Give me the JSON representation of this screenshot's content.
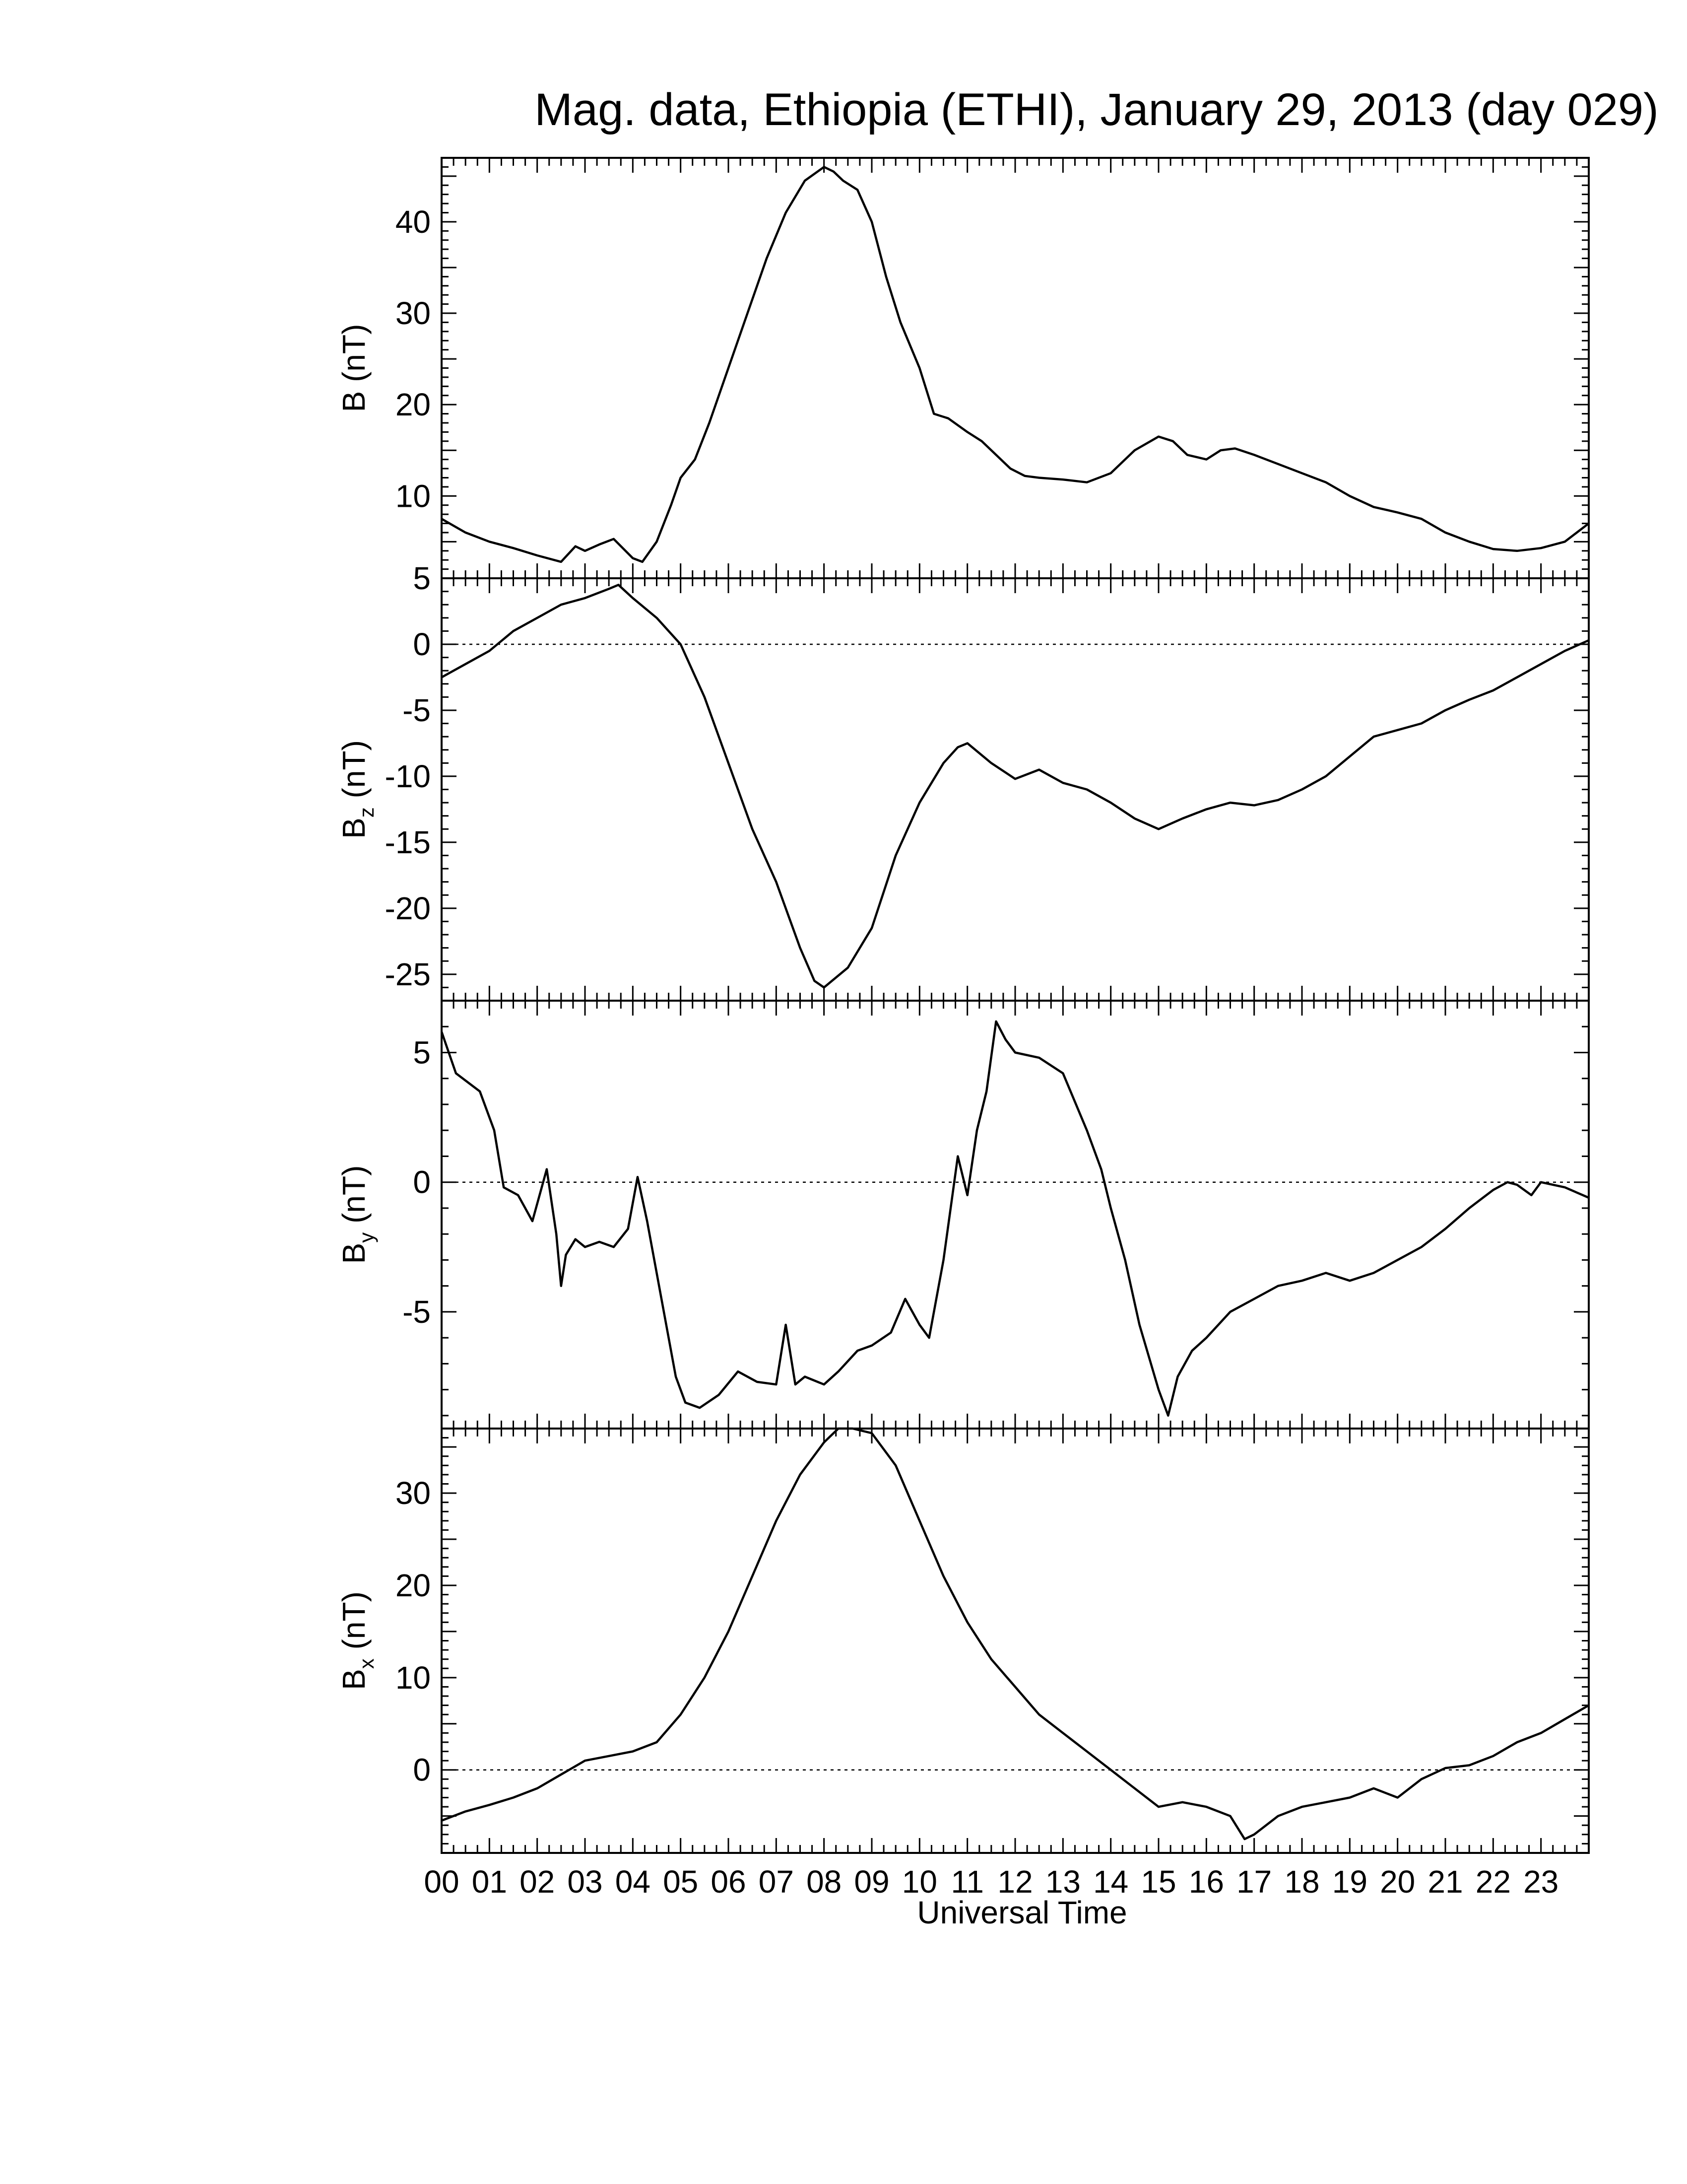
{
  "title": "Mag. data, Ethiopia (ETHI), January 29, 2013 (day 029)",
  "xlabel": "Universal Time",
  "x_tick_labels": [
    "00",
    "01",
    "02",
    "03",
    "04",
    "05",
    "06",
    "07",
    "08",
    "09",
    "10",
    "11",
    "12",
    "13",
    "14",
    "15",
    "16",
    "17",
    "18",
    "19",
    "20",
    "21",
    "22",
    "23"
  ],
  "chart_data": [
    {
      "type": "line",
      "panel": "B",
      "ylabel": "B (nT)",
      "ylabel_main": "B",
      "ylabel_sub": "",
      "ylabel_unit": " (nT)",
      "xlim": [
        0,
        24
      ],
      "ylim": [
        1,
        47
      ],
      "yticks": [
        10,
        20,
        30,
        40
      ],
      "zero_line": false,
      "x": [
        0,
        0.5,
        1,
        1.5,
        2,
        2.5,
        2.8,
        3,
        3.3,
        3.6,
        4,
        4.2,
        4.5,
        4.8,
        5,
        5.3,
        5.6,
        6,
        6.4,
        6.8,
        7.2,
        7.6,
        8,
        8.2,
        8.4,
        8.7,
        9,
        9.3,
        9.6,
        10,
        10.3,
        10.6,
        11,
        11.3,
        11.6,
        11.9,
        12.2,
        12.5,
        13,
        13.5,
        14,
        14.5,
        15,
        15.3,
        15.6,
        16,
        16.3,
        16.6,
        17,
        17.5,
        18,
        18.5,
        19,
        19.5,
        20,
        20.5,
        21,
        21.5,
        22,
        22.5,
        23,
        23.5,
        24
      ],
      "y": [
        7.5,
        6,
        5,
        4.3,
        3.5,
        2.8,
        4.5,
        4,
        4.7,
        5.3,
        3.2,
        2.8,
        5,
        9,
        12,
        14,
        18,
        24,
        30,
        36,
        41,
        44.5,
        46,
        45.5,
        44.5,
        43.5,
        40,
        34,
        29,
        24,
        19,
        18.5,
        17,
        16,
        14.5,
        13,
        12.2,
        12,
        11.8,
        11.5,
        12.5,
        15,
        16.5,
        16,
        14.5,
        14,
        15,
        15.2,
        14.5,
        13.5,
        12.5,
        11.5,
        10,
        8.8,
        8.2,
        7.5,
        6,
        5,
        4.2,
        4,
        4.3,
        5,
        7
      ]
    },
    {
      "type": "line",
      "panel": "Bz",
      "ylabel": "Bz (nT)",
      "ylabel_main": "B",
      "ylabel_sub": "z",
      "ylabel_unit": " (nT)",
      "xlim": [
        0,
        24
      ],
      "ylim": [
        -27,
        5
      ],
      "yticks": [
        5,
        0,
        -5,
        -10,
        -15,
        -20,
        -25
      ],
      "ytick_labels": [
        "5",
        "0",
        "-5",
        "-10",
        "-15",
        "-20",
        "-25"
      ],
      "zero_line": true,
      "x": [
        0,
        0.5,
        1,
        1.5,
        2,
        2.5,
        3,
        3.5,
        3.7,
        4,
        4.5,
        5,
        5.5,
        6,
        6.5,
        7,
        7.5,
        7.8,
        8,
        8.5,
        9,
        9.5,
        10,
        10.5,
        10.8,
        11,
        11.5,
        12,
        12.5,
        13,
        13.5,
        14,
        14.5,
        15,
        15.5,
        16,
        16.5,
        17,
        17.5,
        18,
        18.5,
        19,
        19.5,
        20,
        20.5,
        21,
        21.5,
        22,
        22.5,
        23,
        23.5,
        24
      ],
      "y": [
        -2.5,
        -1.5,
        -0.5,
        1,
        2,
        3,
        3.5,
        4.2,
        4.5,
        3.5,
        2,
        0,
        -4,
        -9,
        -14,
        -18,
        -23,
        -25.5,
        -26,
        -24.5,
        -21.5,
        -16,
        -12,
        -9,
        -7.8,
        -7.5,
        -9,
        -10.2,
        -9.5,
        -10.5,
        -11,
        -12,
        -13.2,
        -14,
        -13.2,
        -12.5,
        -12,
        -12.2,
        -11.8,
        -11,
        -10,
        -8.5,
        -7,
        -6.5,
        -6,
        -5,
        -4.2,
        -3.5,
        -2.5,
        -1.5,
        -0.5,
        0.3
      ]
    },
    {
      "type": "line",
      "panel": "By",
      "ylabel": "By (nT)",
      "ylabel_main": "B",
      "ylabel_sub": "y",
      "ylabel_unit": " (nT)",
      "xlim": [
        0,
        24
      ],
      "ylim": [
        -9.5,
        7
      ],
      "yticks": [
        5,
        0,
        -5
      ],
      "ytick_labels": [
        "5",
        "0",
        "-5"
      ],
      "zero_line": true,
      "x": [
        0,
        0.3,
        0.8,
        1.1,
        1.3,
        1.6,
        1.9,
        2.2,
        2.4,
        2.5,
        2.6,
        2.8,
        3,
        3.3,
        3.6,
        3.9,
        4.1,
        4.3,
        4.6,
        4.9,
        5.1,
        5.4,
        5.8,
        6.2,
        6.6,
        7,
        7.2,
        7.4,
        7.6,
        8,
        8.3,
        8.7,
        9,
        9.4,
        9.7,
        10,
        10.2,
        10.5,
        10.8,
        11,
        11.2,
        11.4,
        11.6,
        11.8,
        12,
        12.5,
        13,
        13.5,
        13.8,
        14,
        14.3,
        14.6,
        15,
        15.2,
        15.4,
        15.7,
        16,
        16.5,
        17,
        17.5,
        18,
        18.5,
        19,
        19.5,
        20,
        20.5,
        21,
        21.5,
        22,
        22.3,
        22.5,
        22.8,
        23,
        23.5,
        24
      ],
      "y": [
        5.8,
        4.2,
        3.5,
        2,
        -0.2,
        -0.5,
        -1.5,
        0.5,
        -2,
        -4,
        -2.8,
        -2.2,
        -2.5,
        -2.3,
        -2.5,
        -1.8,
        0.2,
        -1.5,
        -4.5,
        -7.5,
        -8.5,
        -8.7,
        -8.2,
        -7.3,
        -7.7,
        -7.8,
        -5.5,
        -7.8,
        -7.5,
        -7.8,
        -7.3,
        -6.5,
        -6.3,
        -5.8,
        -4.5,
        -5.5,
        -6,
        -3,
        1,
        -0.5,
        2,
        3.5,
        6.2,
        5.5,
        5,
        4.8,
        4.2,
        2,
        0.5,
        -1,
        -3,
        -5.5,
        -8,
        -9,
        -7.5,
        -6.5,
        -6,
        -5,
        -4.5,
        -4,
        -3.8,
        -3.5,
        -3.8,
        -3.5,
        -3,
        -2.5,
        -1.8,
        -1,
        -0.3,
        0,
        -0.1,
        -0.5,
        0,
        -0.2,
        -0.6
      ]
    },
    {
      "type": "line",
      "panel": "Bx",
      "ylabel": "Bx (nT)",
      "ylabel_main": "B",
      "ylabel_sub": "x",
      "ylabel_unit": " (nT)",
      "xlim": [
        0,
        24
      ],
      "ylim": [
        -9,
        37
      ],
      "yticks": [
        30,
        20,
        10,
        0
      ],
      "ytick_labels": [
        "30",
        "20",
        "10",
        "0"
      ],
      "zero_line": true,
      "x": [
        0,
        0.5,
        1,
        1.5,
        2,
        2.5,
        3,
        3.5,
        4,
        4.5,
        5,
        5.5,
        6,
        6.5,
        7,
        7.5,
        8,
        8.3,
        8.6,
        9,
        9.5,
        10,
        10.5,
        11,
        11.5,
        12,
        12.5,
        13,
        13.5,
        14,
        14.5,
        15,
        15.5,
        16,
        16.5,
        16.8,
        17,
        17.5,
        18,
        18.5,
        19,
        19.5,
        20,
        20.5,
        21,
        21.5,
        22,
        22.5,
        23,
        23.5,
        24
      ],
      "y": [
        -5.5,
        -4.5,
        -3.8,
        -3,
        -2,
        -0.5,
        1,
        1.5,
        2,
        3,
        6,
        10,
        15,
        21,
        27,
        32,
        35.5,
        37,
        37,
        36.5,
        33,
        27,
        21,
        16,
        12,
        9,
        6,
        4,
        2,
        0,
        -2,
        -4,
        -3.5,
        -4,
        -5,
        -7.5,
        -7,
        -5,
        -4,
        -3.5,
        -3,
        -2,
        -3,
        -1,
        0.2,
        0.5,
        1.5,
        3,
        4,
        5.5,
        7
      ]
    }
  ]
}
